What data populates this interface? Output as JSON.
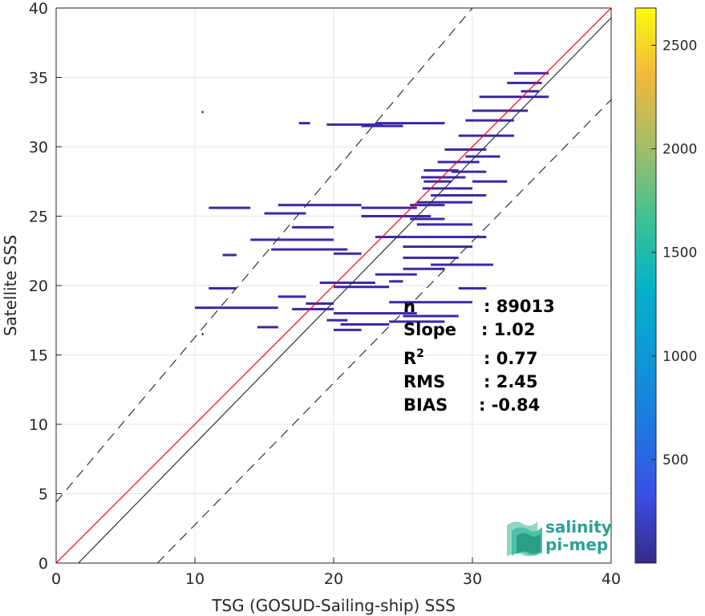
{
  "chart_data": {
    "type": "scatter",
    "xlabel": "TSG (GOSUD-Sailing-ship) SSS",
    "ylabel": "Satellite SSS",
    "xlim": [
      0,
      40
    ],
    "ylim": [
      0,
      40
    ],
    "x_ticks": [
      "0",
      "10",
      "20",
      "30",
      "40"
    ],
    "y_ticks": [
      "0",
      "5",
      "10",
      "15",
      "20",
      "25",
      "30",
      "35",
      "40"
    ],
    "grid": true,
    "colorbar": {
      "range": [
        0,
        2680
      ],
      "ticks": [
        "500",
        "1000",
        "1500",
        "2000",
        "2500"
      ],
      "tick_values": [
        500,
        1000,
        1500,
        2000,
        2500
      ],
      "colormap": "parula"
    },
    "lines": [
      {
        "kind": "identity",
        "color": "#ff0000",
        "style": "solid",
        "points": [
          [
            0,
            0
          ],
          [
            40,
            40
          ]
        ]
      },
      {
        "kind": "regression",
        "color": "#333333",
        "style": "solid",
        "points": [
          [
            1.6,
            0
          ],
          [
            40,
            39.3
          ]
        ]
      },
      {
        "kind": "upper-bound",
        "color": "#333333",
        "style": "dashed",
        "points": [
          [
            0,
            4.4
          ],
          [
            30,
            40
          ]
        ]
      },
      {
        "kind": "lower-bound",
        "color": "#333333",
        "style": "dashed",
        "points": [
          [
            7.3,
            0
          ],
          [
            40,
            33.4
          ]
        ]
      }
    ],
    "point_color": "#3e26a8",
    "segments": [
      [
        10.5,
        32.5,
        10.6
      ],
      [
        17.5,
        31.7,
        18.3
      ],
      [
        19.5,
        31.6,
        23.5
      ],
      [
        23,
        31.7,
        28
      ],
      [
        22,
        31.5,
        25
      ],
      [
        26.5,
        28.3,
        29
      ],
      [
        26.3,
        27.8,
        29.5
      ],
      [
        26.5,
        27.5,
        28.5
      ],
      [
        26.4,
        27,
        30
      ],
      [
        27,
        26.5,
        31
      ],
      [
        26,
        26,
        30
      ],
      [
        25.5,
        25.8,
        28
      ],
      [
        16,
        25.8,
        22
      ],
      [
        22,
        25.6,
        26
      ],
      [
        11,
        25.6,
        14
      ],
      [
        15,
        25.2,
        18
      ],
      [
        22,
        25,
        27
      ],
      [
        25.5,
        24.8,
        28
      ],
      [
        17,
        24.2,
        20
      ],
      [
        26,
        24.4,
        30
      ],
      [
        14,
        23.3,
        20
      ],
      [
        23,
        23.5,
        31
      ],
      [
        25,
        22.8,
        30
      ],
      [
        15.5,
        22.6,
        21
      ],
      [
        12,
        22.2,
        13
      ],
      [
        20,
        22.3,
        22
      ],
      [
        25,
        22,
        29
      ],
      [
        27,
        21.5,
        31.5
      ],
      [
        25,
        21.2,
        28
      ],
      [
        23,
        20.8,
        26
      ],
      [
        19,
        20.2,
        23
      ],
      [
        24,
        20.3,
        25
      ],
      [
        11,
        19.8,
        13
      ],
      [
        20,
        19.9,
        24
      ],
      [
        29,
        19.8,
        31
      ],
      [
        16,
        19.2,
        18
      ],
      [
        18,
        18.7,
        20
      ],
      [
        24,
        18.8,
        30
      ],
      [
        10,
        18.4,
        16
      ],
      [
        17,
        18.3,
        20
      ],
      [
        20,
        18,
        26
      ],
      [
        25,
        17.8,
        29
      ],
      [
        19.5,
        17.5,
        21
      ],
      [
        20.5,
        17.2,
        24
      ],
      [
        24,
        17.4,
        28
      ],
      [
        14.5,
        17,
        16
      ],
      [
        20,
        16.8,
        22
      ],
      [
        10.5,
        16.5,
        10.6
      ],
      [
        30.5,
        33.6,
        35.5
      ],
      [
        30,
        32.6,
        34
      ],
      [
        29.5,
        31.9,
        33
      ],
      [
        29,
        30.8,
        33
      ],
      [
        28,
        29.8,
        31
      ],
      [
        29.5,
        29.3,
        32
      ],
      [
        27.5,
        28.9,
        30.5
      ],
      [
        28.5,
        28.2,
        31
      ],
      [
        30,
        27.5,
        32.5
      ],
      [
        33,
        35.3,
        35.5
      ],
      [
        32.5,
        34.6,
        35
      ],
      [
        33.5,
        34,
        34.8
      ]
    ]
  },
  "stats": [
    {
      "label": "n",
      "value": ": 89013"
    },
    {
      "label": "Slope",
      "value": ": 1.02"
    },
    {
      "label": "R2",
      "value": ": 0.77"
    },
    {
      "label": "RMS",
      "value": ": 2.45"
    },
    {
      "label": "BIAS",
      "value": ": -0.84"
    }
  ],
  "logo": {
    "line1": "salinity",
    "line2": "pi-mep"
  }
}
